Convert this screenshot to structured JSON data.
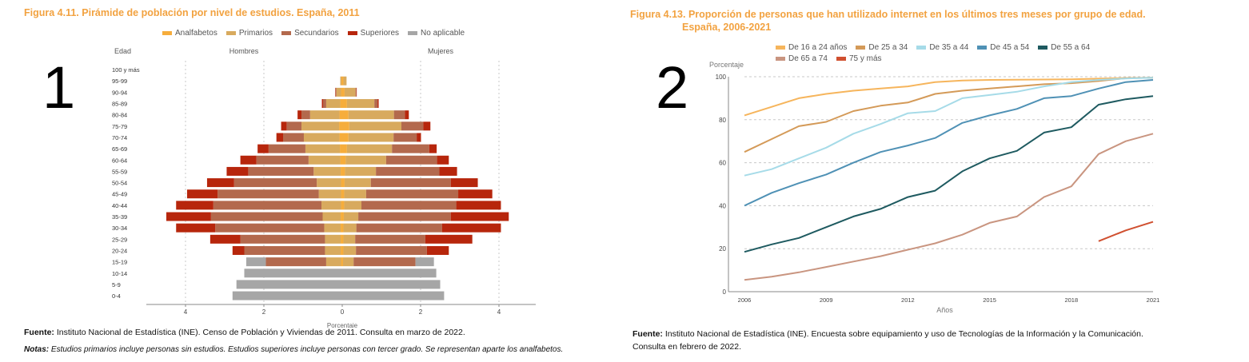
{
  "chart_data": [
    {
      "type": "bar",
      "subtype": "population-pyramid",
      "title": "Figura 4.11. Pirámide de población por nivel de estudios. España, 2011",
      "panel_number": "1",
      "header_left": "Edad",
      "header_hombres": "Hombres",
      "header_mujeres": "Mujeres",
      "xlabel": "Porcentaje",
      "xlim": [
        -5,
        5
      ],
      "xticks": [
        "4",
        "2",
        "0",
        "2",
        "4"
      ],
      "xtick_values": [
        -4,
        -2,
        0,
        2,
        4
      ],
      "grid": "vertical dashed",
      "legend_position": "top",
      "stack_order": [
        "Analfabetos",
        "Primarios",
        "Secundarios",
        "Superiores",
        "No aplicable"
      ],
      "legend": [
        {
          "name": "Analfabetos",
          "color": "#f6ad3c"
        },
        {
          "name": "Primarios",
          "color": "#d8aa5e"
        },
        {
          "name": "Secundarios",
          "color": "#b3694d"
        },
        {
          "name": "Superiores",
          "color": "#b7260c"
        },
        {
          "name": "No aplicable",
          "color": "#a6a6a6"
        }
      ],
      "categories": [
        "100 y más",
        "95-99",
        "90-94",
        "85-89",
        "80-84",
        "75-79",
        "70-74",
        "65-69",
        "60-64",
        "55-59",
        "50-54",
        "45-49",
        "40-44",
        "35-39",
        "30-34",
        "25-29",
        "20-24",
        "15-19",
        "10-14",
        "5-9",
        "0-4"
      ],
      "hombres": [
        [
          0,
          0,
          0,
          0,
          0
        ],
        [
          0.02,
          0.03,
          0,
          0,
          0
        ],
        [
          0.03,
          0.12,
          0.02,
          0.01,
          0
        ],
        [
          0.05,
          0.36,
          0.08,
          0.03,
          0
        ],
        [
          0.07,
          0.75,
          0.22,
          0.1,
          0
        ],
        [
          0.08,
          0.96,
          0.38,
          0.14,
          0
        ],
        [
          0.07,
          0.91,
          0.53,
          0.17,
          0
        ],
        [
          0.06,
          0.88,
          0.94,
          0.28,
          0
        ],
        [
          0.05,
          0.81,
          1.33,
          0.41,
          0
        ],
        [
          0.04,
          0.69,
          1.67,
          0.55,
          0
        ],
        [
          0.03,
          0.62,
          2.11,
          0.69,
          0
        ],
        [
          0.03,
          0.57,
          2.58,
          0.78,
          0
        ],
        [
          0.03,
          0.5,
          2.76,
          0.95,
          0
        ],
        [
          0.04,
          0.46,
          2.85,
          1.14,
          0
        ],
        [
          0.04,
          0.42,
          2.78,
          1.0,
          0
        ],
        [
          0.04,
          0.4,
          2.16,
          0.77,
          0
        ],
        [
          0.04,
          0.4,
          2.06,
          0.3,
          0
        ],
        [
          0.03,
          0.38,
          1.54,
          0,
          0.5
        ],
        [
          0,
          0,
          0,
          0,
          2.5
        ],
        [
          0,
          0,
          0,
          0,
          2.7
        ],
        [
          0,
          0,
          0,
          0,
          2.8
        ]
      ],
      "mujeres": [
        [
          0,
          0,
          0,
          0,
          0
        ],
        [
          0.03,
          0.08,
          0,
          0,
          0
        ],
        [
          0.06,
          0.28,
          0.02,
          0.01,
          0
        ],
        [
          0.12,
          0.7,
          0.08,
          0.03,
          0
        ],
        [
          0.16,
          1.16,
          0.28,
          0.1,
          0
        ],
        [
          0.18,
          1.33,
          0.56,
          0.18,
          0
        ],
        [
          0.16,
          1.15,
          0.59,
          0.11,
          0
        ],
        [
          0.12,
          1.15,
          0.95,
          0.19,
          0
        ],
        [
          0.09,
          1.03,
          1.3,
          0.3,
          0
        ],
        [
          0.07,
          0.79,
          1.62,
          0.45,
          0
        ],
        [
          0.06,
          0.67,
          2.04,
          0.69,
          0
        ],
        [
          0.05,
          0.56,
          2.35,
          0.87,
          0
        ],
        [
          0.05,
          0.44,
          2.42,
          1.14,
          0
        ],
        [
          0.04,
          0.37,
          2.36,
          1.48,
          0
        ],
        [
          0.03,
          0.33,
          2.19,
          1.5,
          0
        ],
        [
          0.03,
          0.3,
          1.79,
          1.2,
          0
        ],
        [
          0.03,
          0.32,
          1.81,
          0.56,
          0
        ],
        [
          0.02,
          0.27,
          1.58,
          0,
          0.47
        ],
        [
          0,
          0,
          0,
          0,
          2.4
        ],
        [
          0,
          0,
          0,
          0,
          2.5
        ],
        [
          0,
          0,
          0,
          0,
          2.6
        ]
      ],
      "source_label": "Fuente:",
      "source_text": " Instituto Nacional de Estadística (INE). Censo de Población y Viviendas de 2011. Consulta en marzo de 2022.",
      "notes_label": "Notas:",
      "notes_text": " Estudios primarios incluye personas sin estudios. Estudios superiores incluye personas con tercer grado. Se representan aparte los analfabetos."
    },
    {
      "type": "line",
      "title_line1": "Figura 4.13. Proporción de personas que han utilizado internet en los últimos tres meses por grupo de edad.",
      "title_line2": "España, 2006-2021",
      "panel_number": "2",
      "ylabel": "Porcentaje",
      "xlabel": "Años",
      "ylim": [
        0,
        100
      ],
      "yticks": [
        0,
        20,
        40,
        60,
        80,
        100
      ],
      "xlim": [
        2006,
        2021
      ],
      "xticks": [
        2006,
        2009,
        2012,
        2015,
        2018,
        2021
      ],
      "grid": "horizontal dashed",
      "legend_position": "top",
      "series": [
        {
          "name": "De 16 a 24 años",
          "color": "#f6b55c",
          "x": [
            2006,
            2007,
            2008,
            2009,
            2010,
            2011,
            2012,
            2013,
            2014,
            2015,
            2016,
            2017,
            2018,
            2019,
            2020,
            2021
          ],
          "values": [
            82,
            86,
            90,
            92,
            93.5,
            94.5,
            95.5,
            97.5,
            98.2,
            98.5,
            98.6,
            98.7,
            98.8,
            99.1,
            99.4,
            99.5
          ]
        },
        {
          "name": "De 25 a 34",
          "color": "#d49a58",
          "x": [
            2006,
            2007,
            2008,
            2009,
            2010,
            2011,
            2012,
            2013,
            2014,
            2015,
            2016,
            2017,
            2018,
            2019,
            2020,
            2021
          ],
          "values": [
            65,
            71,
            77,
            79,
            84,
            86.5,
            88,
            92,
            93.5,
            94.5,
            95.5,
            96.5,
            97,
            98,
            99.3,
            99.5
          ]
        },
        {
          "name": "De 35 a 44",
          "color": "#a6dbe8",
          "x": [
            2006,
            2007,
            2008,
            2009,
            2010,
            2011,
            2012,
            2013,
            2014,
            2015,
            2016,
            2017,
            2018,
            2019,
            2020,
            2021
          ],
          "values": [
            54,
            57,
            62,
            67,
            73.5,
            78,
            83,
            84,
            90,
            91.5,
            93,
            95.5,
            97.5,
            98.5,
            99.2,
            99.5
          ]
        },
        {
          "name": "De 45 a 54",
          "color": "#4f91b5",
          "x": [
            2006,
            2007,
            2008,
            2009,
            2010,
            2011,
            2012,
            2013,
            2014,
            2015,
            2016,
            2017,
            2018,
            2019,
            2020,
            2021
          ],
          "values": [
            40,
            46,
            50.5,
            54.5,
            60,
            65,
            68,
            71.5,
            78.5,
            82,
            85,
            90,
            91,
            94.5,
            97.5,
            98.5
          ]
        },
        {
          "name": "De 55 a 64",
          "color": "#1e5a60",
          "x": [
            2006,
            2007,
            2008,
            2009,
            2010,
            2011,
            2012,
            2013,
            2014,
            2015,
            2016,
            2017,
            2018,
            2019,
            2020,
            2021
          ],
          "values": [
            18.5,
            22,
            25,
            30,
            35,
            38.5,
            44,
            47,
            56,
            62,
            65.5,
            74,
            76.5,
            87,
            89.5,
            91
          ]
        },
        {
          "name": "De 65 a 74",
          "color": "#c99580",
          "x": [
            2006,
            2007,
            2008,
            2009,
            2010,
            2011,
            2012,
            2013,
            2014,
            2015,
            2016,
            2017,
            2018,
            2019,
            2020,
            2021
          ],
          "values": [
            5.5,
            7,
            9,
            11.5,
            14,
            16.5,
            19.5,
            22.5,
            26.5,
            32,
            35,
            44,
            49,
            64,
            70,
            73.5
          ]
        },
        {
          "name": "75 y más",
          "color": "#d05030",
          "x": [
            2019,
            2020,
            2021
          ],
          "values": [
            23.5,
            28.5,
            32.5
          ]
        }
      ],
      "source_label": "Fuente:",
      "source_text": " Instituto Nacional de Estadística (INE). Encuesta sobre equipamiento y uso de Tecnologías de la Información y la Comunicación.",
      "source_text_line2": "Consulta en febrero de 2022."
    }
  ]
}
